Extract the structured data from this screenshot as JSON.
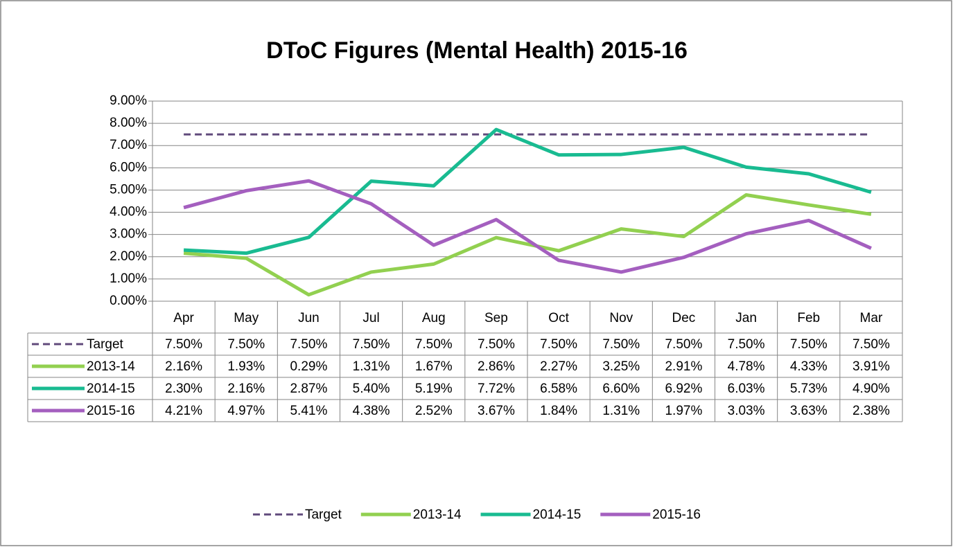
{
  "chart_data": {
    "type": "line",
    "title": "DToC Figures (Mental Health) 2015-16",
    "categories": [
      "Apr",
      "May",
      "Jun",
      "Jul",
      "Aug",
      "Sep",
      "Oct",
      "Nov",
      "Dec",
      "Jan",
      "Feb",
      "Mar"
    ],
    "series": [
      {
        "name": "Target",
        "color": "#604a7b",
        "dashed": true,
        "values": [
          7.5,
          7.5,
          7.5,
          7.5,
          7.5,
          7.5,
          7.5,
          7.5,
          7.5,
          7.5,
          7.5,
          7.5
        ],
        "value_labels": [
          "7.50%",
          "7.50%",
          "7.50%",
          "7.50%",
          "7.50%",
          "7.50%",
          "7.50%",
          "7.50%",
          "7.50%",
          "7.50%",
          "7.50%",
          "7.50%"
        ]
      },
      {
        "name": "2013-14",
        "color": "#92d050",
        "values": [
          2.16,
          1.93,
          0.29,
          1.31,
          1.67,
          2.86,
          2.27,
          3.25,
          2.91,
          4.78,
          4.33,
          3.91
        ],
        "value_labels": [
          "2.16%",
          "1.93%",
          "0.29%",
          "1.31%",
          "1.67%",
          "2.86%",
          "2.27%",
          "3.25%",
          "2.91%",
          "4.78%",
          "4.33%",
          "3.91%"
        ]
      },
      {
        "name": "2014-15",
        "color": "#19bb91",
        "values": [
          2.3,
          2.16,
          2.87,
          5.4,
          5.19,
          7.72,
          6.58,
          6.6,
          6.92,
          6.03,
          5.73,
          4.9
        ],
        "value_labels": [
          "2.30%",
          "2.16%",
          "2.87%",
          "5.40%",
          "5.19%",
          "7.72%",
          "6.58%",
          "6.60%",
          "6.92%",
          "6.03%",
          "5.73%",
          "4.90%"
        ]
      },
      {
        "name": "2015-16",
        "color": "#a45fbf",
        "values": [
          4.21,
          4.97,
          5.41,
          4.38,
          2.52,
          3.67,
          1.84,
          1.31,
          1.97,
          3.03,
          3.63,
          2.38
        ],
        "value_labels": [
          "4.21%",
          "4.97%",
          "5.41%",
          "4.38%",
          "2.52%",
          "3.67%",
          "1.84%",
          "1.31%",
          "1.97%",
          "3.03%",
          "3.63%",
          "2.38%"
        ]
      }
    ],
    "ylim": [
      0,
      9
    ],
    "yticks": [
      {
        "value": 0,
        "label": "0.00%"
      },
      {
        "value": 1,
        "label": "1.00%"
      },
      {
        "value": 2,
        "label": "2.00%"
      },
      {
        "value": 3,
        "label": "3.00%"
      },
      {
        "value": 4,
        "label": "4.00%"
      },
      {
        "value": 5,
        "label": "5.00%"
      },
      {
        "value": 6,
        "label": "6.00%"
      },
      {
        "value": 7,
        "label": "7.00%"
      },
      {
        "value": 8,
        "label": "8.00%"
      },
      {
        "value": 9,
        "label": "9.00%"
      }
    ],
    "grid": true,
    "legend": "bottom"
  }
}
